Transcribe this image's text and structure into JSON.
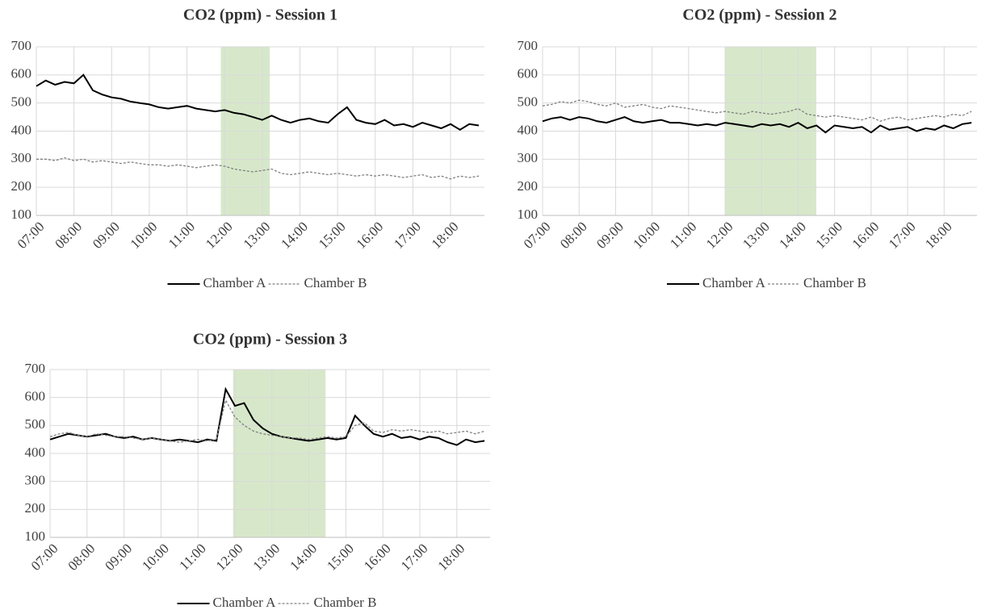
{
  "chart_data": [
    {
      "type": "line",
      "title": "CO2 (ppm) - Session 1",
      "x": [
        7,
        7.25,
        7.5,
        7.75,
        8,
        8.25,
        8.5,
        8.75,
        9,
        9.25,
        9.5,
        9.75,
        10,
        10.25,
        10.5,
        10.75,
        11,
        11.25,
        11.5,
        11.75,
        12,
        12.25,
        12.5,
        12.75,
        13,
        13.25,
        13.5,
        13.75,
        14,
        14.25,
        14.5,
        14.75,
        15,
        15.25,
        15.5,
        15.75,
        16,
        16.25,
        16.5,
        16.75,
        17,
        17.25,
        17.5,
        17.75,
        18,
        18.25,
        18.5,
        18.75
      ],
      "series": [
        {
          "name": "Chamber A",
          "color": "#000000",
          "dash": false,
          "values": [
            560,
            580,
            565,
            575,
            570,
            600,
            545,
            530,
            520,
            515,
            505,
            500,
            495,
            485,
            480,
            485,
            490,
            480,
            475,
            470,
            475,
            465,
            460,
            450,
            440,
            455,
            440,
            430,
            440,
            445,
            435,
            430,
            460,
            485,
            440,
            430,
            425,
            440,
            420,
            425,
            415,
            430,
            420,
            410,
            425,
            405,
            425,
            420
          ]
        },
        {
          "name": "Chamber B",
          "color": "#808080",
          "dash": true,
          "values": [
            300,
            300,
            295,
            305,
            295,
            300,
            290,
            295,
            290,
            285,
            290,
            285,
            280,
            280,
            275,
            280,
            275,
            270,
            275,
            280,
            275,
            265,
            260,
            255,
            260,
            265,
            250,
            245,
            250,
            255,
            250,
            245,
            250,
            245,
            240,
            245,
            240,
            245,
            240,
            235,
            240,
            245,
            235,
            240,
            230,
            240,
            235,
            240
          ]
        }
      ],
      "xlim": [
        7,
        18.9
      ],
      "ylim": [
        100,
        700
      ],
      "yticks": [
        100,
        200,
        300,
        400,
        500,
        600,
        700
      ],
      "xticks": [
        {
          "value": 7,
          "label": "07:00"
        },
        {
          "value": 8,
          "label": "08:00"
        },
        {
          "value": 9,
          "label": "09:00"
        },
        {
          "value": 10,
          "label": "10:00"
        },
        {
          "value": 11,
          "label": "11:00"
        },
        {
          "value": 12,
          "label": "12:00"
        },
        {
          "value": 13,
          "label": "13:00"
        },
        {
          "value": 14,
          "label": "14:00"
        },
        {
          "value": 15,
          "label": "15:00"
        },
        {
          "value": 16,
          "label": "16:00"
        },
        {
          "value": 17,
          "label": "17:00"
        },
        {
          "value": 18,
          "label": "18:00"
        }
      ],
      "highlight": [
        11.9,
        13.2
      ],
      "highlight_color": "#c9e0b8",
      "grid": true
    },
    {
      "type": "line",
      "title": "CO2 (ppm) - Session 2",
      "x": [
        7,
        7.25,
        7.5,
        7.75,
        8,
        8.25,
        8.5,
        8.75,
        9,
        9.25,
        9.5,
        9.75,
        10,
        10.25,
        10.5,
        10.75,
        11,
        11.25,
        11.5,
        11.75,
        12,
        12.25,
        12.5,
        12.75,
        13,
        13.25,
        13.5,
        13.75,
        14,
        14.25,
        14.5,
        14.75,
        15,
        15.25,
        15.5,
        15.75,
        16,
        16.25,
        16.5,
        16.75,
        17,
        17.25,
        17.5,
        17.75,
        18,
        18.25,
        18.5,
        18.75
      ],
      "series": [
        {
          "name": "Chamber A",
          "color": "#000000",
          "dash": false,
          "values": [
            435,
            445,
            450,
            440,
            450,
            445,
            435,
            430,
            440,
            450,
            435,
            430,
            435,
            440,
            430,
            430,
            425,
            420,
            425,
            420,
            430,
            425,
            420,
            415,
            425,
            420,
            425,
            415,
            430,
            410,
            420,
            395,
            420,
            415,
            410,
            415,
            395,
            420,
            405,
            410,
            415,
            400,
            410,
            405,
            420,
            410,
            425,
            430
          ]
        },
        {
          "name": "Chamber B",
          "color": "#808080",
          "dash": true,
          "values": [
            490,
            495,
            505,
            500,
            510,
            505,
            495,
            490,
            500,
            485,
            490,
            495,
            485,
            480,
            490,
            485,
            480,
            475,
            470,
            465,
            470,
            465,
            460,
            470,
            465,
            460,
            465,
            470,
            480,
            460,
            455,
            450,
            455,
            450,
            445,
            440,
            450,
            435,
            445,
            450,
            440,
            445,
            450,
            455,
            450,
            460,
            455,
            470
          ]
        }
      ],
      "xlim": [
        7,
        18.9
      ],
      "ylim": [
        100,
        700
      ],
      "yticks": [
        100,
        200,
        300,
        400,
        500,
        600,
        700
      ],
      "xticks": [
        {
          "value": 7,
          "label": "07:00"
        },
        {
          "value": 8,
          "label": "08:00"
        },
        {
          "value": 9,
          "label": "09:00"
        },
        {
          "value": 10,
          "label": "10:00"
        },
        {
          "value": 11,
          "label": "11:00"
        },
        {
          "value": 12,
          "label": "12:00"
        },
        {
          "value": 13,
          "label": "13:00"
        },
        {
          "value": 14,
          "label": "14:00"
        },
        {
          "value": 15,
          "label": "15:00"
        },
        {
          "value": 16,
          "label": "16:00"
        },
        {
          "value": 17,
          "label": "17:00"
        },
        {
          "value": 18,
          "label": "18:00"
        }
      ],
      "highlight": [
        12.0,
        14.5
      ],
      "highlight_color": "#c9e0b8",
      "grid": true
    },
    {
      "type": "line",
      "title": "CO2 (ppm) - Session 3",
      "x": [
        7,
        7.25,
        7.5,
        7.75,
        8,
        8.25,
        8.5,
        8.75,
        9,
        9.25,
        9.5,
        9.75,
        10,
        10.25,
        10.5,
        10.75,
        11,
        11.25,
        11.5,
        11.75,
        12,
        12.25,
        12.5,
        12.75,
        13,
        13.25,
        13.5,
        13.75,
        14,
        14.25,
        14.5,
        14.75,
        15,
        15.25,
        15.5,
        15.75,
        16,
        16.25,
        16.5,
        16.75,
        17,
        17.25,
        17.5,
        17.75,
        18,
        18.25,
        18.5,
        18.75
      ],
      "series": [
        {
          "name": "Chamber A",
          "color": "#000000",
          "dash": false,
          "values": [
            450,
            460,
            470,
            465,
            460,
            465,
            470,
            460,
            455,
            460,
            450,
            455,
            450,
            445,
            450,
            445,
            440,
            450,
            445,
            630,
            570,
            580,
            520,
            490,
            470,
            460,
            455,
            450,
            445,
            450,
            455,
            450,
            455,
            535,
            500,
            470,
            460,
            470,
            455,
            460,
            450,
            460,
            455,
            440,
            430,
            450,
            440,
            445
          ]
        },
        {
          "name": "Chamber B",
          "color": "#808080",
          "dash": true,
          "values": [
            460,
            470,
            475,
            465,
            460,
            470,
            465,
            460,
            460,
            455,
            450,
            455,
            450,
            445,
            440,
            445,
            450,
            445,
            450,
            590,
            530,
            500,
            480,
            470,
            465,
            460,
            455,
            455,
            450,
            455,
            460,
            455,
            460,
            500,
            510,
            480,
            475,
            485,
            480,
            485,
            480,
            475,
            480,
            470,
            475,
            480,
            470,
            480
          ]
        }
      ],
      "xlim": [
        7,
        18.9
      ],
      "ylim": [
        100,
        700
      ],
      "yticks": [
        100,
        200,
        300,
        400,
        500,
        600,
        700
      ],
      "xticks": [
        {
          "value": 7,
          "label": "07:00"
        },
        {
          "value": 8,
          "label": "08:00"
        },
        {
          "value": 9,
          "label": "09:00"
        },
        {
          "value": 10,
          "label": "10:00"
        },
        {
          "value": 11,
          "label": "11:00"
        },
        {
          "value": 12,
          "label": "12:00"
        },
        {
          "value": 13,
          "label": "13:00"
        },
        {
          "value": 14,
          "label": "14:00"
        },
        {
          "value": 15,
          "label": "15:00"
        },
        {
          "value": 16,
          "label": "16:00"
        },
        {
          "value": 17,
          "label": "17:00"
        },
        {
          "value": 18,
          "label": "18:00"
        }
      ],
      "highlight": [
        11.95,
        14.45
      ],
      "highlight_color": "#c9e0b8",
      "grid": true
    }
  ]
}
